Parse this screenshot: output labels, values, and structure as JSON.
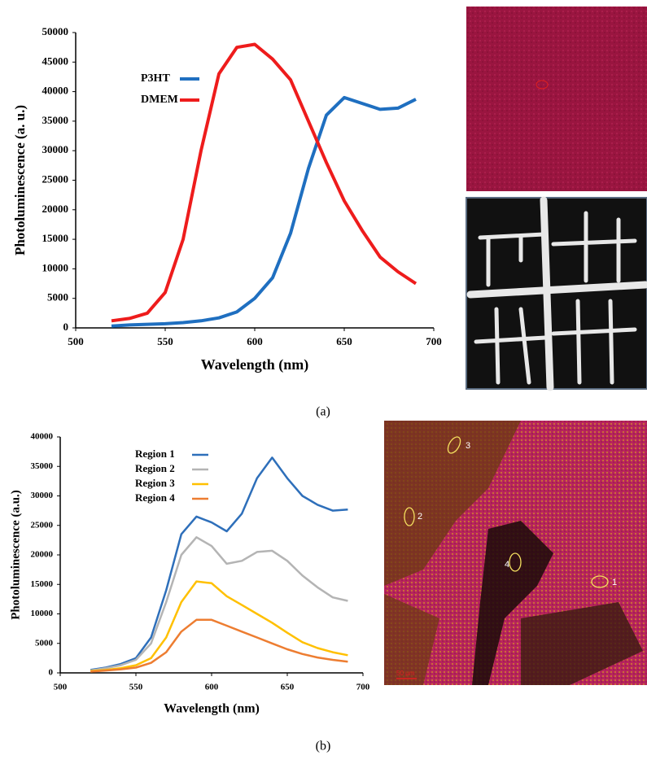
{
  "chart_data": [
    {
      "type": "line",
      "xlabel": "Wavelength (nm)",
      "ylabel": "Photoluminescence (a. u.)",
      "xlim": [
        500,
        700
      ],
      "xticks": [
        500,
        550,
        600,
        650,
        700
      ],
      "ylim": [
        0,
        50000
      ],
      "yticks": [
        0,
        5000,
        10000,
        15000,
        20000,
        25000,
        30000,
        35000,
        40000,
        45000,
        50000
      ],
      "legend": "upper left",
      "x": [
        520,
        530,
        540,
        550,
        560,
        570,
        580,
        590,
        600,
        610,
        620,
        630,
        640,
        650,
        660,
        670,
        680,
        690
      ],
      "series": [
        {
          "name": "P3HT",
          "color": "#1f6fc0",
          "values": [
            300,
            500,
            600,
            700,
            900,
            1200,
            1700,
            2700,
            5000,
            8500,
            16000,
            27000,
            36000,
            39000,
            38000,
            37000,
            37200,
            38700
          ]
        },
        {
          "name": "DMEM",
          "color": "#ee1c1c",
          "values": [
            1200,
            1600,
            2500,
            6000,
            15000,
            30000,
            43000,
            47500,
            48000,
            45500,
            42000,
            35000,
            28000,
            21500,
            16500,
            12000,
            9500,
            7500
          ]
        }
      ]
    },
    {
      "type": "line",
      "xlabel": "Wavelength (nm)",
      "ylabel": "Photoluminescence (a.u.)",
      "xlim": [
        500,
        700
      ],
      "xticks": [
        500,
        550,
        600,
        650,
        700
      ],
      "ylim": [
        0,
        40000
      ],
      "yticks": [
        0,
        5000,
        10000,
        15000,
        20000,
        25000,
        30000,
        35000,
        40000
      ],
      "legend": "upper left",
      "x": [
        520,
        530,
        540,
        550,
        560,
        570,
        580,
        590,
        600,
        610,
        620,
        630,
        640,
        650,
        660,
        670,
        680,
        690
      ],
      "series": [
        {
          "name": "Region 1",
          "color": "#2e6fba",
          "values": [
            500,
            900,
            1500,
            2500,
            6000,
            14000,
            23500,
            26500,
            25500,
            24000,
            27000,
            33000,
            36500,
            33000,
            30000,
            28500,
            27500,
            27700
          ]
        },
        {
          "name": "Region 2",
          "color": "#b4b4b4",
          "values": [
            400,
            800,
            1300,
            2200,
            5000,
            12000,
            20000,
            23000,
            21500,
            18500,
            19000,
            20500,
            20700,
            19000,
            16500,
            14500,
            12800,
            12200
          ]
        },
        {
          "name": "Region 3",
          "color": "#ffc000",
          "values": [
            300,
            500,
            800,
            1300,
            2500,
            6000,
            12000,
            15500,
            15200,
            13000,
            11500,
            10000,
            8500,
            6800,
            5200,
            4200,
            3500,
            3000
          ]
        },
        {
          "name": "Region 4",
          "color": "#ed7d31",
          "values": [
            200,
            400,
            600,
            900,
            1700,
            3500,
            7000,
            9000,
            9000,
            8000,
            7000,
            6000,
            5000,
            4000,
            3200,
            2600,
            2200,
            1900
          ]
        }
      ]
    }
  ],
  "captions": [
    "(a)",
    "(b)"
  ],
  "image_labels": [
    "1",
    "2",
    "3",
    "4"
  ],
  "scale_bar": "50 µm"
}
